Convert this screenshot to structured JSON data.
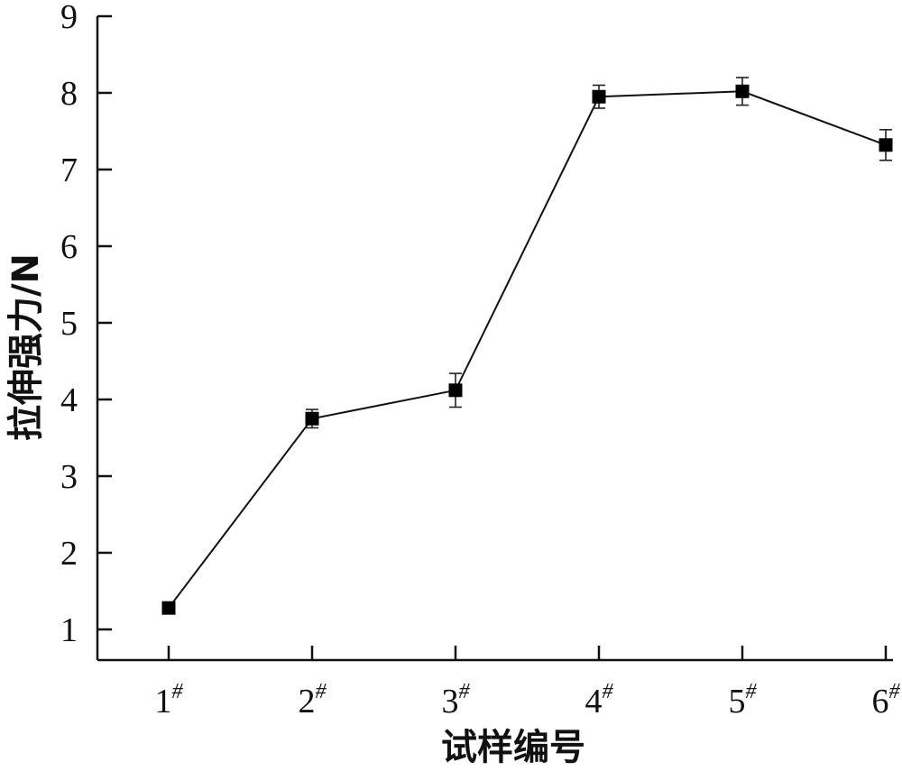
{
  "chart_data": {
    "type": "line",
    "title": "",
    "xlabel": "试样编号",
    "ylabel": "拉伸强力/N",
    "categories": [
      "1",
      "2",
      "3",
      "4",
      "5",
      "6"
    ],
    "category_superscript": "#",
    "ylim": [
      0.6,
      9
    ],
    "yticks": [
      1,
      2,
      3,
      4,
      5,
      6,
      7,
      8,
      9
    ],
    "grid": false,
    "legend": "none",
    "marker": "square",
    "series": [
      {
        "values": [
          1.28,
          3.75,
          4.12,
          7.95,
          8.02,
          7.32
        ],
        "error": [
          0.05,
          0.12,
          0.22,
          0.15,
          0.18,
          0.2
        ]
      }
    ]
  }
}
